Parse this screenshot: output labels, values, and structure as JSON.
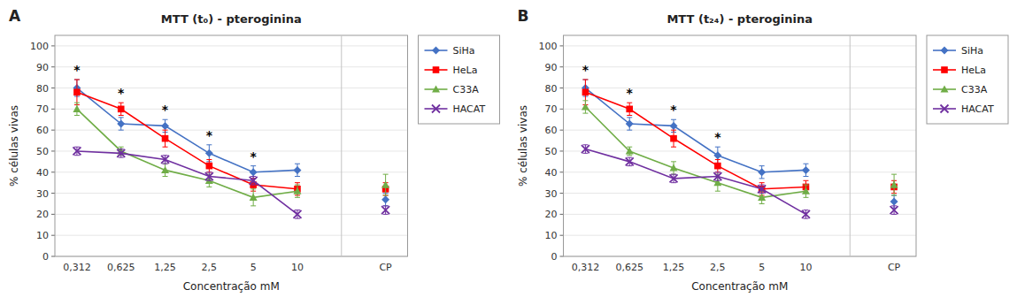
{
  "chart_data": [
    {
      "type": "line",
      "title": "MTT (t₀) - pteroginina",
      "label": "A",
      "xlabel": "Concentração mM",
      "ylabel": "% células vivas",
      "categories": [
        "0,312",
        "0,625",
        "1,25",
        "2,5",
        "5",
        "10",
        null,
        "CP"
      ],
      "series": [
        {
          "name": "SiHa",
          "color": "#4472C4",
          "marker": "diamond",
          "values": [
            80,
            63,
            62,
            49,
            40,
            41,
            null,
            27
          ],
          "errors": [
            4,
            3,
            3,
            4,
            3,
            3,
            null,
            3
          ]
        },
        {
          "name": "HeLa",
          "color": "#FF0000",
          "marker": "square",
          "values": [
            78,
            70,
            56,
            43,
            34,
            32,
            null,
            32
          ],
          "errors": [
            6,
            3,
            4,
            3,
            3,
            3,
            null,
            3
          ]
        },
        {
          "name": "C33A",
          "color": "#70AD47",
          "marker": "triangle",
          "values": [
            70,
            50,
            41,
            36,
            28,
            31,
            null,
            34
          ],
          "errors": [
            3,
            2,
            3,
            3,
            4,
            3,
            null,
            5
          ]
        },
        {
          "name": "HACAT",
          "color": "#7030A0",
          "marker": "x",
          "values": [
            50,
            49,
            46,
            38,
            36,
            20,
            null,
            22
          ],
          "errors": [
            2,
            2,
            2,
            2,
            2,
            2,
            null,
            2
          ]
        }
      ],
      "annotations": [
        {
          "text": "*",
          "category": "0,312"
        },
        {
          "text": "*",
          "category": "0,625"
        },
        {
          "text": "*",
          "category": "1,25"
        },
        {
          "text": "*",
          "category": "2,5"
        },
        {
          "text": "*",
          "category": "5"
        }
      ],
      "ylim": [
        0,
        105
      ],
      "yticks": [
        0,
        10,
        20,
        30,
        40,
        50,
        60,
        70,
        80,
        90,
        100
      ],
      "grid": true,
      "legend": "right"
    },
    {
      "type": "line",
      "title": "MTT (t₂₄) - pteroginina",
      "label": "B",
      "xlabel": "Concentração mM",
      "ylabel": "% células vivas",
      "categories": [
        "0,312",
        "0,625",
        "1,25",
        "2,5",
        "5",
        "10",
        null,
        "CP"
      ],
      "series": [
        {
          "name": "SiHa",
          "color": "#4472C4",
          "marker": "diamond",
          "values": [
            80,
            63,
            62,
            48,
            40,
            41,
            null,
            26
          ],
          "errors": [
            4,
            3,
            3,
            4,
            3,
            3,
            null,
            3
          ]
        },
        {
          "name": "HeLa",
          "color": "#FF0000",
          "marker": "square",
          "values": [
            78,
            70,
            56,
            43,
            32,
            33,
            null,
            33
          ],
          "errors": [
            6,
            3,
            4,
            3,
            3,
            3,
            null,
            3
          ]
        },
        {
          "name": "C33A",
          "color": "#70AD47",
          "marker": "triangle",
          "values": [
            71,
            50,
            42,
            35,
            28,
            31,
            null,
            34
          ],
          "errors": [
            3,
            2,
            3,
            4,
            3,
            3,
            null,
            5
          ]
        },
        {
          "name": "HACAT",
          "color": "#7030A0",
          "marker": "x",
          "values": [
            51,
            45,
            37,
            38,
            32,
            20,
            null,
            22
          ],
          "errors": [
            2,
            2,
            2,
            2,
            2,
            2,
            null,
            2
          ]
        }
      ],
      "annotations": [
        {
          "text": "*",
          "category": "0,312"
        },
        {
          "text": "*",
          "category": "0,625"
        },
        {
          "text": "*",
          "category": "1,25"
        },
        {
          "text": "*",
          "category": "2,5"
        }
      ],
      "ylim": [
        0,
        105
      ],
      "yticks": [
        0,
        10,
        20,
        30,
        40,
        50,
        60,
        70,
        80,
        90,
        100
      ],
      "grid": true,
      "legend": "right"
    }
  ]
}
